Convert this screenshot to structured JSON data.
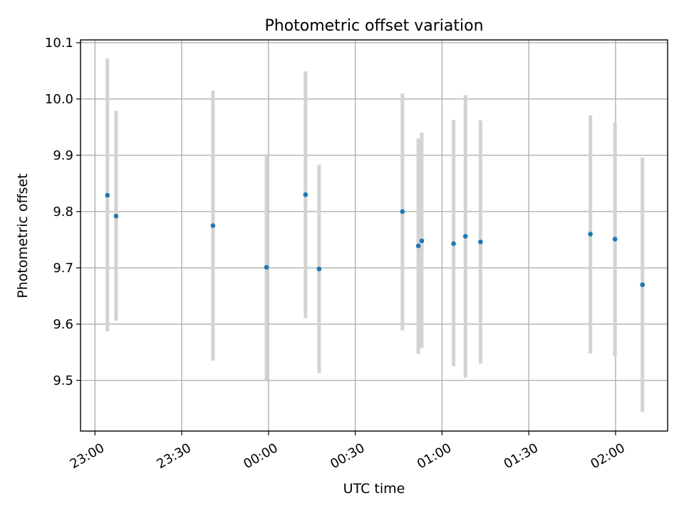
{
  "chart_data": {
    "type": "scatter",
    "title": "Photometric offset variation",
    "xlabel": "UTC time",
    "ylabel": "Photometric offset",
    "x_ticks": [
      "23:00",
      "23:30",
      "00:00",
      "00:30",
      "01:00",
      "01:30",
      "02:00"
    ],
    "x_tick_minutes": [
      0,
      30,
      60,
      90,
      120,
      150,
      180
    ],
    "xlim_minutes": [
      -5,
      198
    ],
    "y_ticks": [
      "9.5",
      "9.6",
      "9.7",
      "9.8",
      "9.9",
      "10.0",
      "10.1"
    ],
    "y_tick_values": [
      9.5,
      9.6,
      9.7,
      9.8,
      9.9,
      10.0,
      10.1
    ],
    "ylim": [
      9.41,
      10.105
    ],
    "grid": true,
    "colors": {
      "point": "#1f77b4",
      "errorbar": "#d3d3d3"
    },
    "points": [
      {
        "time": "23:04",
        "minute": 4.3,
        "y": 9.829,
        "ylow": 9.587,
        "yhigh": 10.072
      },
      {
        "time": "23:07",
        "minute": 7.3,
        "y": 9.792,
        "ylow": 9.606,
        "yhigh": 9.979
      },
      {
        "time": "23:41",
        "minute": 40.8,
        "y": 9.775,
        "ylow": 9.535,
        "yhigh": 10.015
      },
      {
        "time": "23:59",
        "minute": 59.3,
        "y": 9.701,
        "ylow": 9.501,
        "yhigh": 9.902
      },
      {
        "time": "00:13",
        "minute": 72.8,
        "y": 9.83,
        "ylow": 9.611,
        "yhigh": 10.049
      },
      {
        "time": "00:17",
        "minute": 77.5,
        "y": 9.698,
        "ylow": 9.513,
        "yhigh": 9.883
      },
      {
        "time": "00:46",
        "minute": 106.3,
        "y": 9.8,
        "ylow": 9.589,
        "yhigh": 10.01
      },
      {
        "time": "00:52",
        "minute": 111.8,
        "y": 9.739,
        "ylow": 9.547,
        "yhigh": 9.93
      },
      {
        "time": "00:53",
        "minute": 113.0,
        "y": 9.748,
        "ylow": 9.558,
        "yhigh": 9.94
      },
      {
        "time": "01:04",
        "minute": 124.0,
        "y": 9.743,
        "ylow": 9.525,
        "yhigh": 9.963
      },
      {
        "time": "01:08",
        "minute": 128.1,
        "y": 9.756,
        "ylow": 9.505,
        "yhigh": 10.007
      },
      {
        "time": "01:13",
        "minute": 133.3,
        "y": 9.746,
        "ylow": 9.53,
        "yhigh": 9.962
      },
      {
        "time": "01:51",
        "minute": 171.3,
        "y": 9.76,
        "ylow": 9.548,
        "yhigh": 9.971
      },
      {
        "time": "02:00",
        "minute": 179.8,
        "y": 9.751,
        "ylow": 9.543,
        "yhigh": 9.958
      },
      {
        "time": "02:09",
        "minute": 189.3,
        "y": 9.67,
        "ylow": 9.444,
        "yhigh": 9.896
      }
    ]
  }
}
